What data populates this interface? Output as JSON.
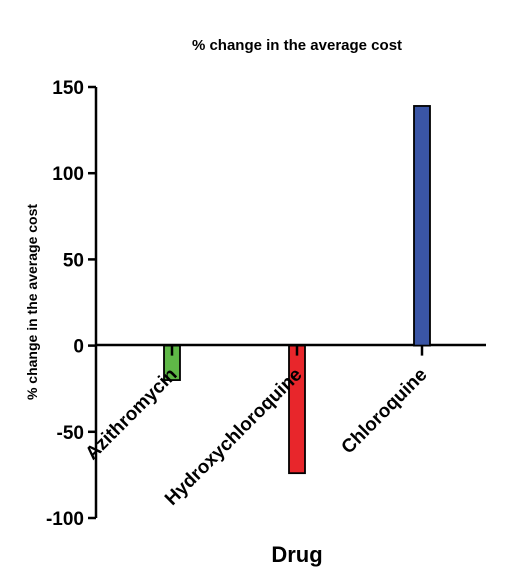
{
  "chart_data": {
    "type": "bar",
    "title": "% change in the average cost",
    "xlabel": "Drug",
    "ylabel": "% change in the average cost",
    "categories": [
      "Azithromycin",
      "Hydroxychloroquine",
      "Chloroquine"
    ],
    "values": [
      -20,
      -74,
      139
    ],
    "colors": [
      "#5fb847",
      "#e8262b",
      "#3a55a5"
    ],
    "ylim": [
      -100,
      150
    ],
    "yticks": [
      150,
      100,
      50,
      0,
      -50,
      -100
    ],
    "grid": false
  }
}
